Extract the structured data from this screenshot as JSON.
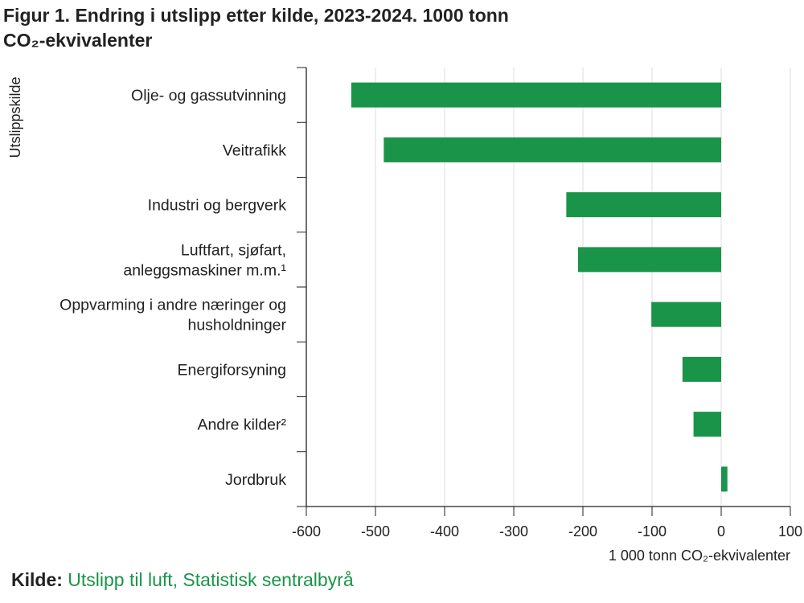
{
  "title_line1": "Figur 1. Endring i utslipp etter kilde, 2023-2024. 1000 tonn",
  "title_line2": "CO₂-ekvivalenter",
  "source": {
    "label": "Kilde:",
    "text": "Utslipp til luft, Statistisk sentralbyrå"
  },
  "colors": {
    "bar": "#1a9448",
    "axis": "#222222",
    "grid": "#dddddd",
    "text": "#222222",
    "source_link": "#1a9448"
  },
  "chart_data": {
    "type": "bar",
    "orientation": "horizontal",
    "categories": [
      [
        "Olje- og gassutvinning"
      ],
      [
        "Veitrafikk"
      ],
      [
        "Industri og bergverk"
      ],
      [
        "Luftfart, sjøfart,",
        "anleggsmaskiner m.m.¹"
      ],
      [
        "Oppvarming i andre næringer og",
        "husholdninger"
      ],
      [
        "Energiforsyning"
      ],
      [
        "Andre kilder²"
      ],
      [
        "Jordbruk"
      ]
    ],
    "values": [
      -535,
      -488,
      -224,
      -207,
      -101,
      -56,
      -40,
      9
    ],
    "xlabel": "1 000 tonn CO₂-ekvivalenter",
    "ylabel": "Utslippskilde",
    "xlim": [
      -600,
      100
    ],
    "xticks": [
      -600,
      -500,
      -400,
      -300,
      -200,
      -100,
      0,
      100
    ],
    "grid": true
  }
}
